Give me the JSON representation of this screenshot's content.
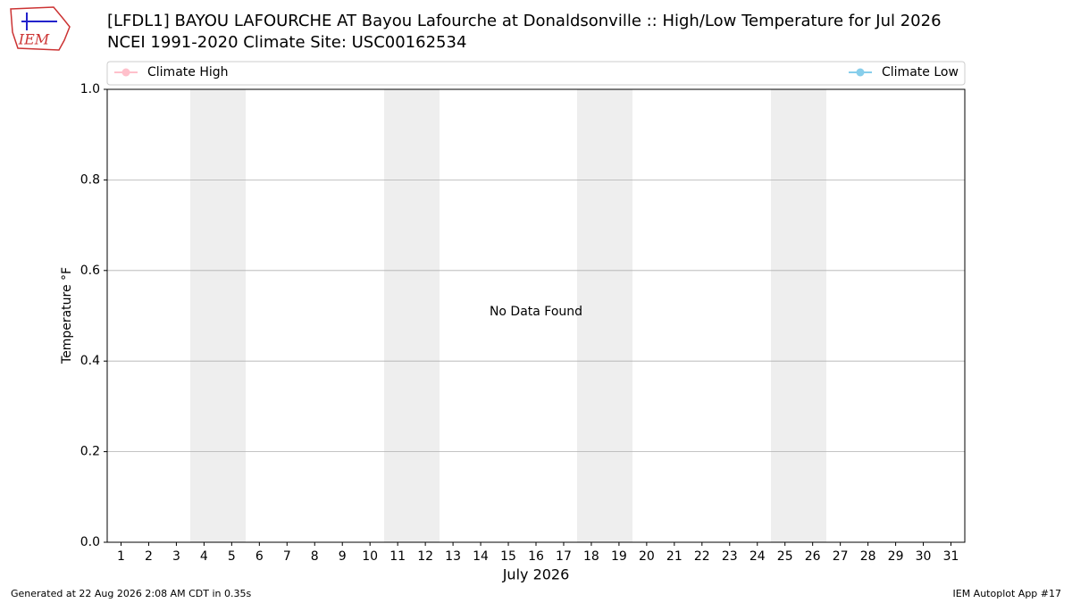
{
  "chart_data": {
    "type": "line",
    "title": "[LFDL1] BAYOU LAFOURCHE  AT Bayou Lafourche at Donaldsonville :: High/Low Temperature for Jul 2026",
    "subtitle": "NCEI 1991-2020 Climate Site: USC00162534",
    "x_label": "July 2026",
    "y_label": "Temperature °F",
    "annotation": "No Data Found",
    "x": [
      1,
      2,
      3,
      4,
      5,
      6,
      7,
      8,
      9,
      10,
      11,
      12,
      13,
      14,
      15,
      16,
      17,
      18,
      19,
      20,
      21,
      22,
      23,
      24,
      25,
      26,
      27,
      28,
      29,
      30,
      31
    ],
    "xlim": [
      0.5,
      31.5
    ],
    "series": [
      {
        "name": "Climate High",
        "color": "pink",
        "values": [
          null,
          null,
          null,
          null,
          null,
          null,
          null,
          null,
          null,
          null,
          null,
          null,
          null,
          null,
          null,
          null,
          null,
          null,
          null,
          null,
          null,
          null,
          null,
          null,
          null,
          null,
          null,
          null,
          null,
          null,
          null
        ]
      },
      {
        "name": "Climate Low",
        "color": "skyblue",
        "values": [
          null,
          null,
          null,
          null,
          null,
          null,
          null,
          null,
          null,
          null,
          null,
          null,
          null,
          null,
          null,
          null,
          null,
          null,
          null,
          null,
          null,
          null,
          null,
          null,
          null,
          null,
          null,
          null,
          null,
          null,
          null
        ]
      }
    ],
    "ylim": [
      0,
      1
    ],
    "yticks": [
      {
        "value": 0,
        "label": "0.0"
      },
      {
        "value": 0.2,
        "label": "0.2"
      },
      {
        "value": 0.4,
        "label": "0.4"
      },
      {
        "value": 0.6,
        "label": "0.6"
      },
      {
        "value": 0.8,
        "label": "0.8"
      },
      {
        "value": 1,
        "label": "1.0"
      }
    ],
    "grid": true
  },
  "logo": "IEM",
  "footer": {
    "left": "Generated at 22 Aug 2026 2:08 AM CDT in 0.35s",
    "right": "IEM Autoplot App #17"
  }
}
